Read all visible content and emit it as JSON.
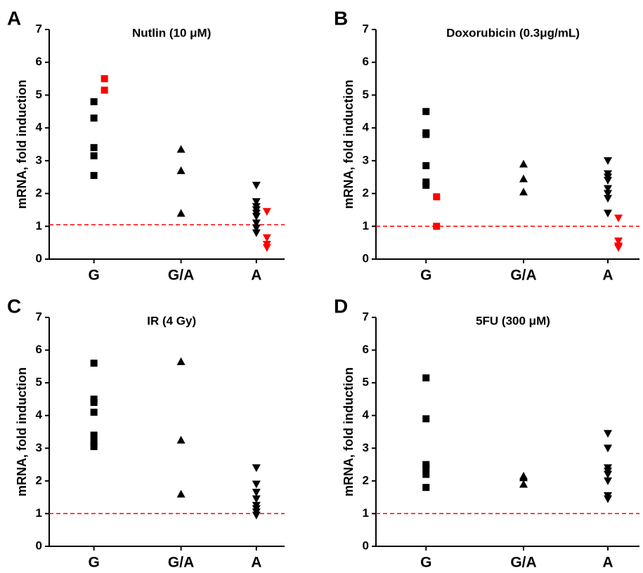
{
  "chart_data": [
    {
      "type": "scatter",
      "panel_label": "A",
      "title": "Nutlin (10 μM)",
      "ylabel": "mRNA, fold induction",
      "categories": [
        "G",
        "G/A",
        "A"
      ],
      "markers": [
        "square",
        "triangle-up",
        "triangle-down"
      ],
      "color": "#000000",
      "highlight_color": "#ff0000",
      "values": [
        [
          4.8,
          4.3,
          3.4,
          3.15,
          2.55
        ],
        [
          3.35,
          2.7,
          1.4
        ],
        [
          2.25,
          1.75,
          1.6,
          1.5,
          1.4,
          1.3,
          1.1,
          0.95,
          0.8
        ]
      ],
      "highlight_values": [
        [
          5.5,
          5.15
        ],
        [],
        [
          1.45,
          0.65,
          0.45,
          0.35
        ]
      ],
      "reference_line": {
        "value": 1.05,
        "color": "#ff0000",
        "dashed": true
      },
      "ylim": [
        0,
        7
      ],
      "yticks": [
        0,
        1,
        2,
        3,
        4,
        5,
        6,
        7
      ]
    },
    {
      "type": "scatter",
      "panel_label": "B",
      "title": "Doxorubicin (0.3μg/mL)",
      "ylabel": "mRNA, fold induction",
      "categories": [
        "G",
        "G/A",
        "A"
      ],
      "markers": [
        "square",
        "triangle-up",
        "triangle-down"
      ],
      "color": "#000000",
      "highlight_color": "#ff0000",
      "values": [
        [
          4.5,
          3.85,
          3.8,
          2.85,
          2.35,
          2.25
        ],
        [
          2.9,
          2.45,
          2.05
        ],
        [
          3.0,
          2.6,
          2.5,
          2.4,
          2.15,
          2.0,
          1.85,
          1.4
        ]
      ],
      "highlight_values": [
        [
          1.9,
          1.0
        ],
        [],
        [
          1.25,
          0.55,
          0.4,
          0.35
        ]
      ],
      "reference_line": {
        "value": 1.0,
        "color": "#ff0000",
        "dashed": true
      },
      "ylim": [
        0,
        7
      ],
      "yticks": [
        0,
        1,
        2,
        3,
        4,
        5,
        6,
        7
      ]
    },
    {
      "type": "scatter",
      "panel_label": "C",
      "title": "IR (4 Gy)",
      "ylabel": "mRNA, fold induction",
      "categories": [
        "G",
        "G/A",
        "A"
      ],
      "markers": [
        "square",
        "triangle-up",
        "triangle-down"
      ],
      "color": "#000000",
      "highlight_color": "#ff0000",
      "values": [
        [
          5.6,
          4.5,
          4.4,
          4.1,
          3.4,
          3.2,
          3.05
        ],
        [
          5.65,
          3.25,
          1.6
        ],
        [
          2.4,
          1.9,
          1.65,
          1.45,
          1.25,
          1.15,
          1.05,
          0.95
        ]
      ],
      "highlight_values": [
        [],
        [],
        []
      ],
      "reference_line": {
        "value": 1.0,
        "color": "#ff0000",
        "dashed": true
      },
      "ylim": [
        0,
        7
      ],
      "yticks": [
        0,
        1,
        2,
        3,
        4,
        5,
        6,
        7
      ]
    },
    {
      "type": "scatter",
      "panel_label": "D",
      "title": "5FU (300 μM)",
      "ylabel": "mRNA, fold induction",
      "categories": [
        "G",
        "G/A",
        "A"
      ],
      "markers": [
        "square",
        "triangle-up",
        "triangle-down"
      ],
      "color": "#000000",
      "highlight_color": "#ff0000",
      "values": [
        [
          5.15,
          3.9,
          2.5,
          2.4,
          2.2,
          1.8
        ],
        [
          2.15,
          2.1,
          1.9
        ],
        [
          3.45,
          3.0,
          2.4,
          2.3,
          2.2,
          2.0,
          1.55,
          1.45
        ]
      ],
      "highlight_values": [
        [],
        [],
        []
      ],
      "reference_line": {
        "value": 1.0,
        "color": "#ff0000",
        "dashed": true
      },
      "ylim": [
        0,
        7
      ],
      "yticks": [
        0,
        1,
        2,
        3,
        4,
        5,
        6,
        7
      ]
    }
  ]
}
